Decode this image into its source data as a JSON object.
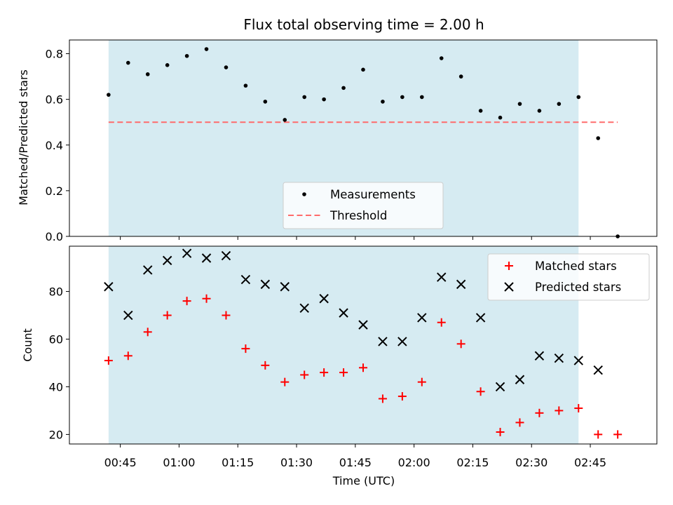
{
  "chart_data": [
    {
      "type": "scatter",
      "title": "Flux total observing time = 2.00 h",
      "ylabel": "Matched/Predicted stars",
      "xlabel": "",
      "ylim": [
        0,
        0.86
      ],
      "yticks": [
        "0.0",
        "0.2",
        "0.4",
        "0.6",
        "0.8"
      ],
      "grid": false,
      "legend_position": "lower-center",
      "shaded_region": {
        "x_start": "00:42",
        "x_end": "02:42",
        "color": "#add8e6"
      },
      "series": [
        {
          "name": "Measurements",
          "marker": "dot",
          "color": "#000000",
          "x": [
            "00:42",
            "00:47",
            "00:52",
            "00:57",
            "01:02",
            "01:07",
            "01:12",
            "01:17",
            "01:22",
            "01:27",
            "01:32",
            "01:37",
            "01:42",
            "01:47",
            "01:52",
            "01:57",
            "02:02",
            "02:07",
            "02:12",
            "02:17",
            "02:22",
            "02:27",
            "02:32",
            "02:37",
            "02:42",
            "02:47",
            "02:52"
          ],
          "values": [
            0.62,
            0.76,
            0.71,
            0.75,
            0.79,
            0.82,
            0.74,
            0.66,
            0.59,
            0.51,
            0.61,
            0.6,
            0.65,
            0.73,
            0.59,
            0.61,
            0.61,
            0.78,
            0.7,
            0.55,
            0.52,
            0.58,
            0.55,
            0.58,
            0.61,
            0.43,
            0.0
          ]
        },
        {
          "name": "Threshold",
          "style": "dashed",
          "color": "#ff6b6b",
          "x": [
            "00:42",
            "02:52"
          ],
          "values": [
            0.5,
            0.5
          ]
        }
      ]
    },
    {
      "type": "scatter",
      "title": "",
      "xlabel": "Time (UTC)",
      "ylabel": "Count",
      "ylim": [
        16,
        99
      ],
      "yticks": [
        "20",
        "40",
        "60",
        "80"
      ],
      "xlim": [
        "00:32",
        "03:02"
      ],
      "xticks": [
        "00:45",
        "01:00",
        "01:15",
        "01:30",
        "01:45",
        "02:00",
        "02:15",
        "02:30",
        "02:45"
      ],
      "grid": false,
      "legend_position": "upper-right",
      "shaded_region": {
        "x_start": "00:42",
        "x_end": "02:42",
        "color": "#add8e6"
      },
      "series": [
        {
          "name": "Matched stars",
          "marker": "plus",
          "color": "#ff0000",
          "x": [
            "00:42",
            "00:47",
            "00:52",
            "00:57",
            "01:02",
            "01:07",
            "01:12",
            "01:17",
            "01:22",
            "01:27",
            "01:32",
            "01:37",
            "01:42",
            "01:47",
            "01:52",
            "01:57",
            "02:02",
            "02:07",
            "02:12",
            "02:17",
            "02:22",
            "02:27",
            "02:32",
            "02:37",
            "02:42",
            "02:47",
            "02:52"
          ],
          "values": [
            51,
            53,
            63,
            70,
            76,
            77,
            70,
            56,
            49,
            42,
            45,
            46,
            46,
            48,
            35,
            36,
            42,
            67,
            58,
            38,
            21,
            25,
            29,
            30,
            31,
            20,
            20
          ]
        },
        {
          "name": "Predicted stars",
          "marker": "x",
          "color": "#000000",
          "x": [
            "00:42",
            "00:47",
            "00:52",
            "00:57",
            "01:02",
            "01:07",
            "01:12",
            "01:17",
            "01:22",
            "01:27",
            "01:32",
            "01:37",
            "01:42",
            "01:47",
            "01:52",
            "01:57",
            "02:02",
            "02:07",
            "02:12",
            "02:17",
            "02:22",
            "02:27",
            "02:32",
            "02:37",
            "02:42",
            "02:47"
          ],
          "values": [
            82,
            70,
            89,
            93,
            96,
            94,
            95,
            85,
            83,
            82,
            73,
            77,
            71,
            66,
            59,
            59,
            69,
            86,
            83,
            69,
            40,
            43,
            53,
            52,
            51,
            47
          ]
        }
      ]
    }
  ]
}
